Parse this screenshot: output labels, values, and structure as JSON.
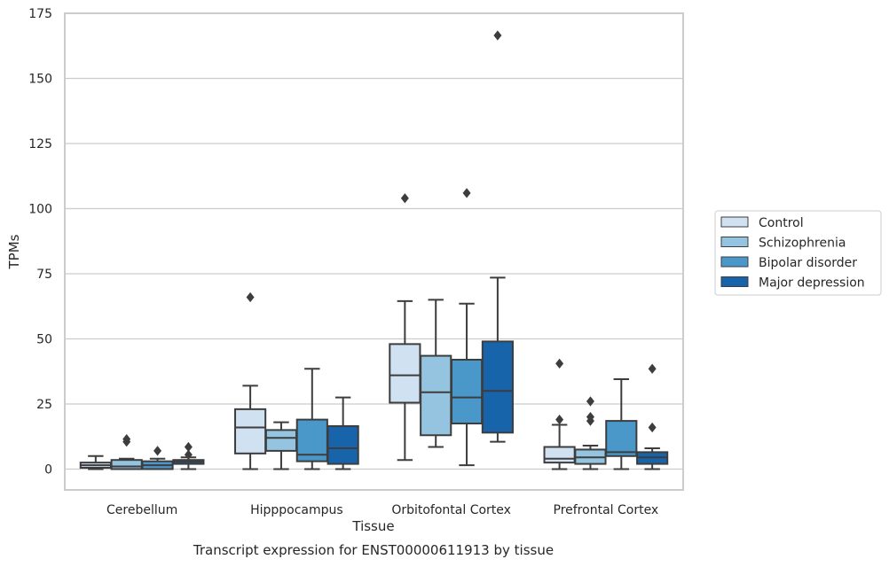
{
  "chart_data": {
    "type": "boxplot",
    "caption": "Transcript expression for ENST00000611913 by tissue",
    "xlabel": "Tissue",
    "ylabel": "TPMs",
    "ylim": [
      -8,
      175
    ],
    "yticks": [
      0,
      25,
      50,
      75,
      100,
      125,
      150,
      175
    ],
    "grid": "horizontal",
    "legend_position": "right",
    "categories": [
      "Cerebellum",
      "Hipppocampus",
      "Orbitofontal Cortex",
      "Prefrontal Cortex"
    ],
    "series": [
      {
        "name": "Control",
        "color": "#d0e1f2",
        "boxes": [
          {
            "whislo": 0,
            "q1": 0.5,
            "med": 1.5,
            "q3": 2.5,
            "whishi": 5,
            "fliers": []
          },
          {
            "whislo": 0,
            "q1": 6,
            "med": 16,
            "q3": 23,
            "whishi": 32,
            "fliers": [
              66
            ]
          },
          {
            "whislo": 3.5,
            "q1": 25.5,
            "med": 36,
            "q3": 48,
            "whishi": 64.5,
            "fliers": [
              104
            ]
          },
          {
            "whislo": 0,
            "q1": 2.5,
            "med": 4,
            "q3": 8.5,
            "whishi": 17,
            "fliers": [
              19,
              40.5
            ]
          }
        ]
      },
      {
        "name": "Schizophrenia",
        "color": "#94c4df",
        "boxes": [
          {
            "whislo": 0,
            "q1": 0,
            "med": 1,
            "q3": 3.5,
            "whishi": 4,
            "fliers": [
              10.5,
              11.5
            ]
          },
          {
            "whislo": 0,
            "q1": 7,
            "med": 12,
            "q3": 15,
            "whishi": 18,
            "fliers": []
          },
          {
            "whislo": 8.5,
            "q1": 13,
            "med": 29.5,
            "q3": 43.5,
            "whishi": 65,
            "fliers": []
          },
          {
            "whislo": 0,
            "q1": 2,
            "med": 4.5,
            "q3": 7.5,
            "whishi": 9,
            "fliers": [
              18.5,
              20,
              26
            ]
          }
        ]
      },
      {
        "name": "Bipolar disorder",
        "color": "#4a98c9",
        "boxes": [
          {
            "whislo": 0,
            "q1": 0,
            "med": 1.5,
            "q3": 3,
            "whishi": 4,
            "fliers": [
              7
            ]
          },
          {
            "whislo": 0,
            "q1": 3,
            "med": 5.5,
            "q3": 19,
            "whishi": 38.5,
            "fliers": []
          },
          {
            "whislo": 1.5,
            "q1": 17.5,
            "med": 27.5,
            "q3": 42,
            "whishi": 63.5,
            "fliers": [
              106
            ]
          },
          {
            "whislo": 0,
            "q1": 5,
            "med": 6.5,
            "q3": 18.5,
            "whishi": 34.5,
            "fliers": []
          }
        ]
      },
      {
        "name": "Major depression",
        "color": "#1764ab",
        "boxes": [
          {
            "whislo": 0,
            "q1": 2,
            "med": 2.8,
            "q3": 3.5,
            "whishi": 4.5,
            "fliers": [
              5.5,
              8.5
            ]
          },
          {
            "whislo": 0,
            "q1": 2,
            "med": 8,
            "q3": 16.5,
            "whishi": 27.5,
            "fliers": []
          },
          {
            "whislo": 10.5,
            "q1": 14,
            "med": 30,
            "q3": 49,
            "whishi": 73.5,
            "fliers": [
              166.5
            ]
          },
          {
            "whislo": 0,
            "q1": 2,
            "med": 4.5,
            "q3": 6.5,
            "whishi": 8,
            "fliers": [
              16,
              38.5
            ]
          }
        ]
      }
    ]
  }
}
